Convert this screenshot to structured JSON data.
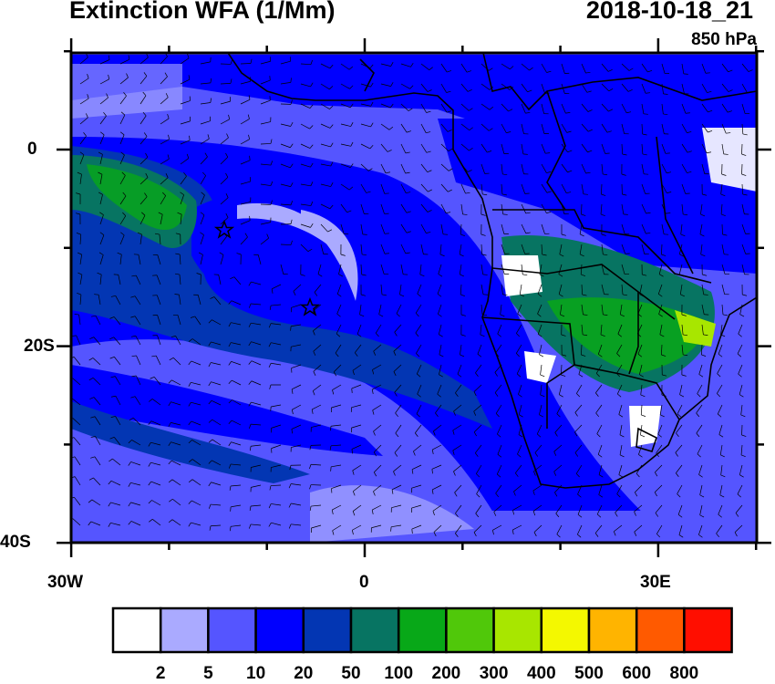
{
  "header": {
    "title": "Extinction WFA (1/Mm)",
    "datetime": "2018-10-18_21",
    "level": "850 hPa"
  },
  "map": {
    "region": "South Atlantic / Southern Africa",
    "lon_range": [
      -30,
      40
    ],
    "lat_range": [
      -40,
      10
    ],
    "x_tick_labels": [
      "30W",
      "0",
      "30E"
    ],
    "y_tick_labels": [
      "0",
      "20S",
      "40S"
    ],
    "overlays": [
      "wind-barbs",
      "country-borders",
      "coastlines"
    ],
    "markers": [
      {
        "type": "star",
        "lon": -14.3,
        "lat": -8
      },
      {
        "type": "star",
        "lon": -5.5,
        "lat": -16
      }
    ]
  },
  "colorbar": {
    "labels": [
      "2",
      "5",
      "10",
      "20",
      "50",
      "100",
      "200",
      "300",
      "400",
      "500",
      "600",
      "800"
    ],
    "colors": [
      "#ffffff",
      "#aaaaff",
      "#5555ff",
      "#0000ff",
      "#0336b3",
      "#077462",
      "#08a818",
      "#50c80a",
      "#a8e600",
      "#f4f800",
      "#ffb400",
      "#ff5a00",
      "#ff0e00"
    ]
  }
}
